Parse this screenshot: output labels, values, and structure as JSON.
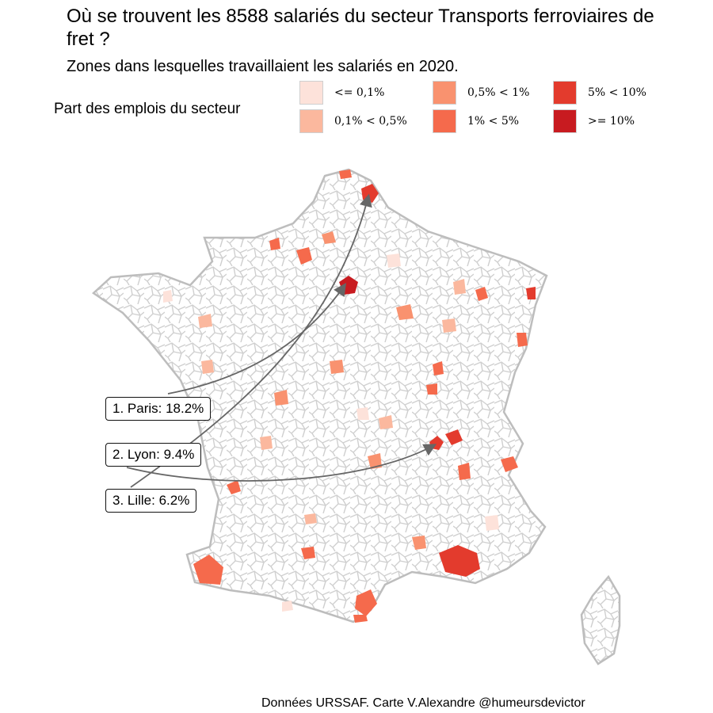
{
  "header": {
    "title": "Où se trouvent les 8588 salariés du secteur Transports ferroviaires de fret ?",
    "subtitle": "Zones dans lesquelles travaillaient les salariés en 2020."
  },
  "legend": {
    "title": "Part des emplois du secteur",
    "items": [
      {
        "label": "<= 0,1%",
        "color": "#fde2da"
      },
      {
        "label": "0,1% < 0,5%",
        "color": "#fbb89e"
      },
      {
        "label": "0,5% < 1%",
        "color": "#f9926f"
      },
      {
        "label": "1% < 5%",
        "color": "#f56a4c"
      },
      {
        "label": "5% < 10%",
        "color": "#e33b2d"
      },
      {
        "label": ">= 10%",
        "color": "#c81b20"
      }
    ]
  },
  "callouts": [
    {
      "label": "1. Paris: 18.2%"
    },
    {
      "label": "2. Lyon: 9.4%"
    },
    {
      "label": "3. Lille: 6.2%"
    }
  ],
  "caption": "Données URSSAF. Carte V.Alexandre @humeursdevictor",
  "colors": {
    "boundary": "#c8c8c8",
    "arrow": "#666666",
    "background": "#ffffff"
  }
}
